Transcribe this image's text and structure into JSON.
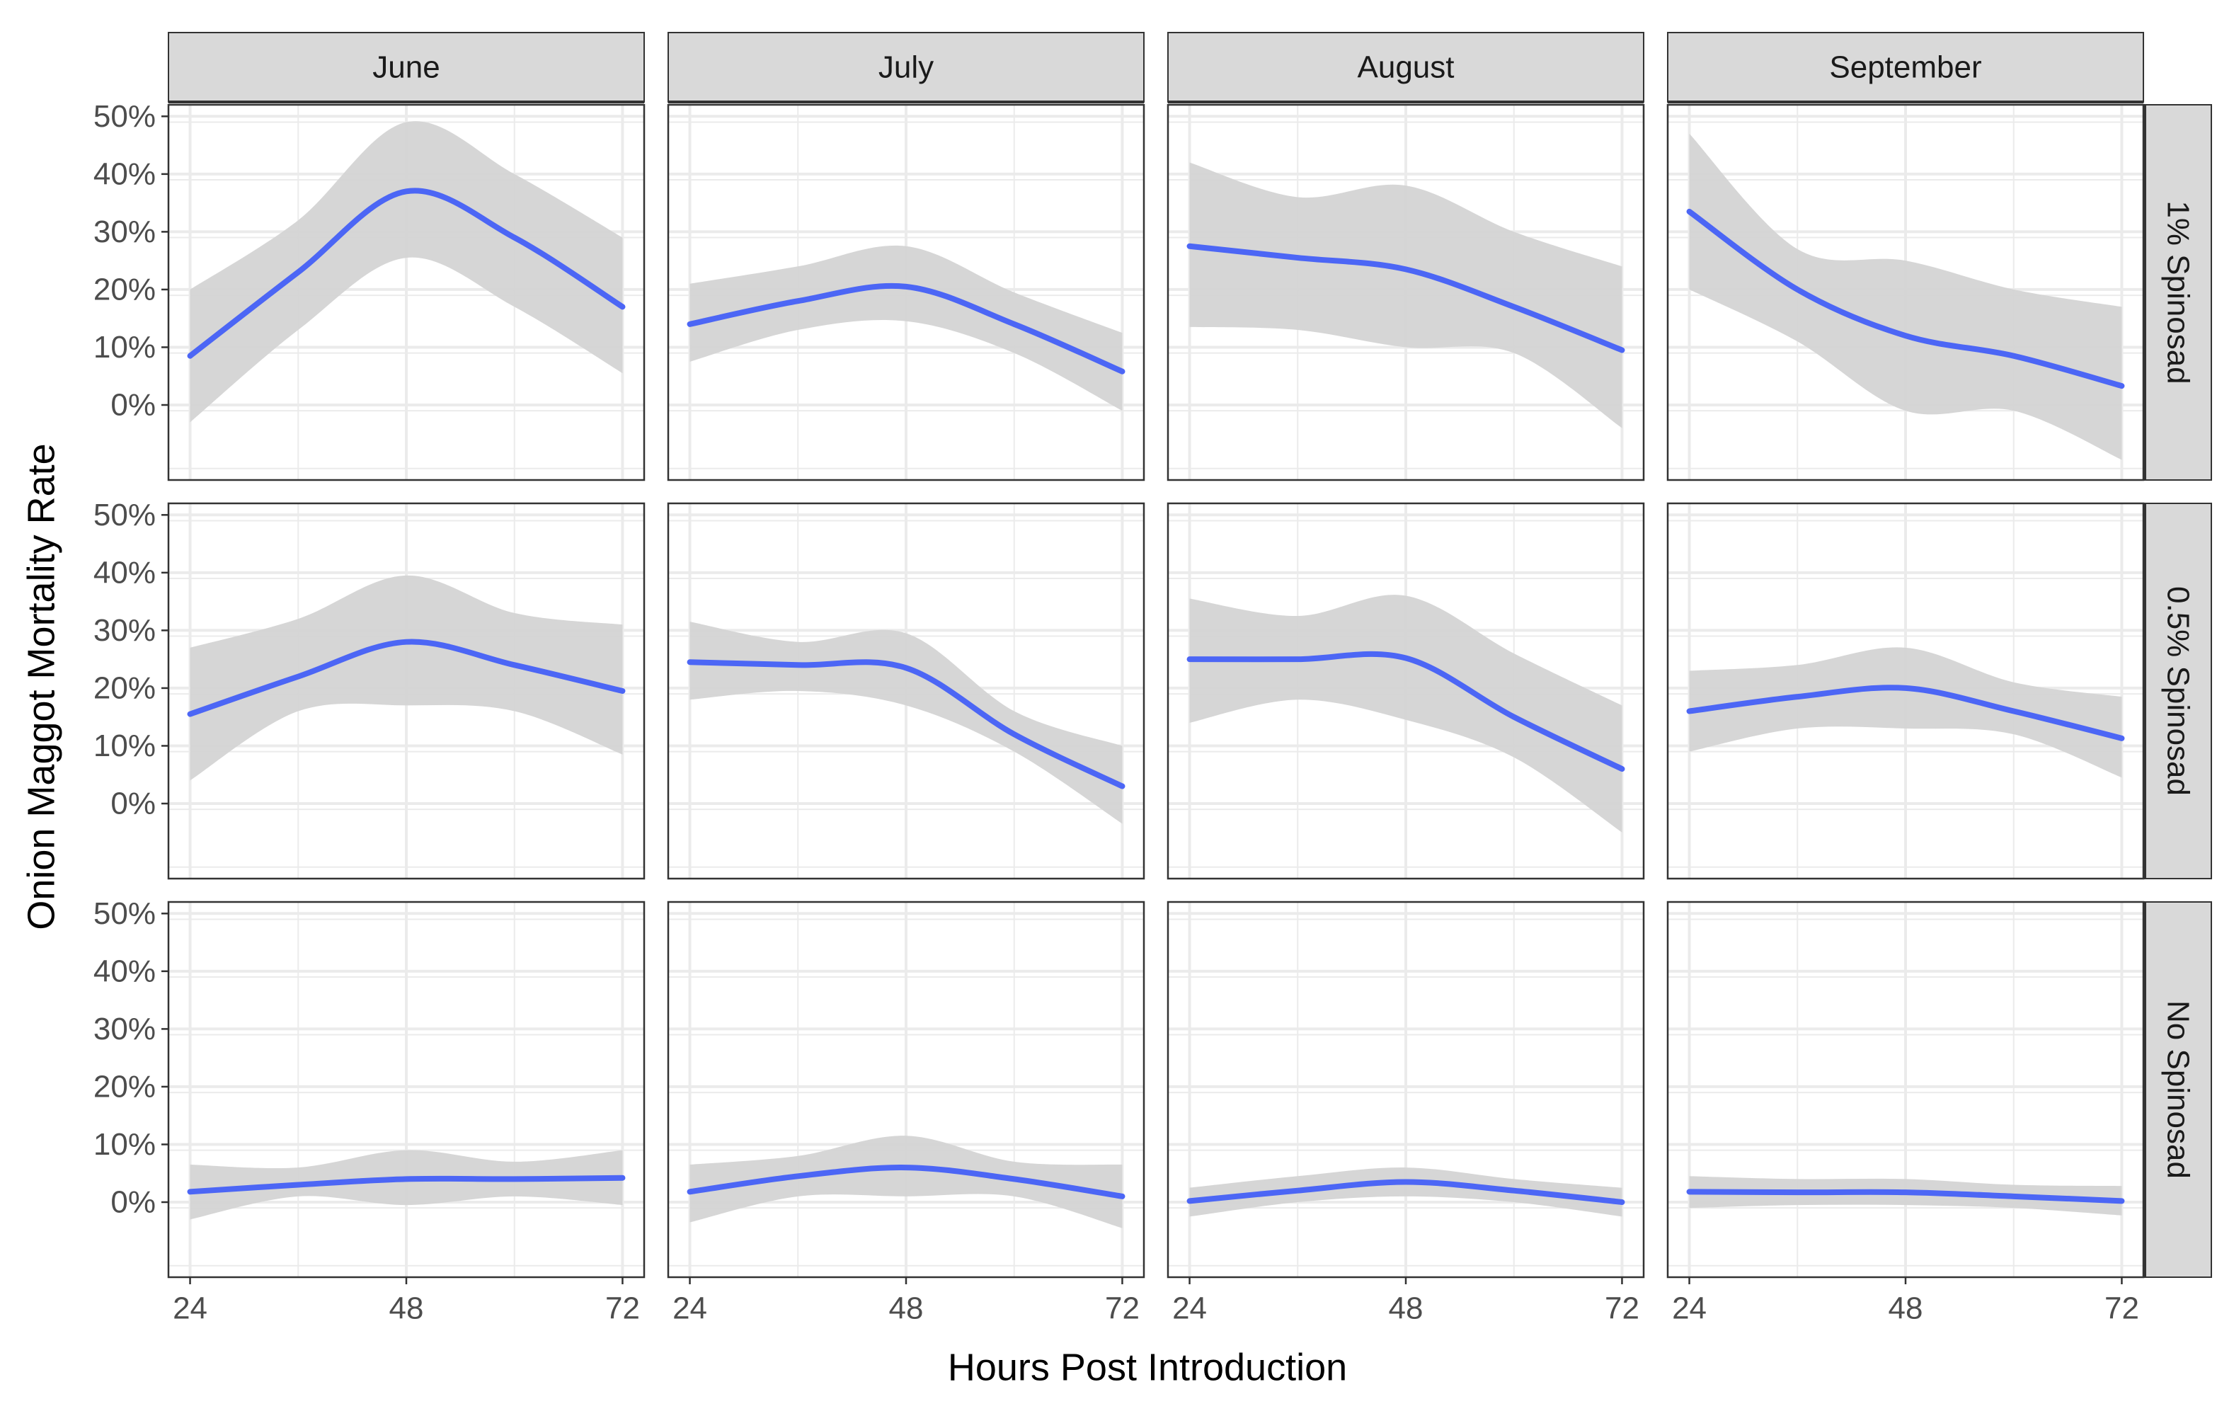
{
  "chart_data": {
    "type": "line",
    "facets": {
      "columns": [
        "June",
        "July",
        "August",
        "September"
      ],
      "rows": [
        "1% Spinosad",
        "0.5% Spinosad",
        "No Spinosad"
      ]
    },
    "xlabel": "Hours Post Introduction",
    "ylabel": "Onion Maggot Mortality Rate",
    "x_ticks": [
      24,
      48,
      72
    ],
    "x_tick_labels": [
      "24",
      "48",
      "72"
    ],
    "y_ticks": [
      0,
      10,
      20,
      30,
      40,
      50
    ],
    "y_tick_labels": [
      "0%",
      "10%",
      "20%",
      "30%",
      "40%",
      "50%"
    ],
    "xlim": [
      21.6,
      74.4
    ],
    "ylim": [
      -13,
      52
    ],
    "grid": true,
    "colors": {
      "line": "#4c66f5",
      "band": "#d4d4d4",
      "strip": "#d9d9d9",
      "grid": "#ebebeb"
    },
    "x": [
      24,
      36,
      48,
      60,
      72
    ],
    "panels": [
      {
        "row": "1% Spinosad",
        "col": "June",
        "y": [
          8.5,
          23,
          37,
          29,
          17
        ],
        "lower": [
          -3,
          13,
          25.5,
          17,
          5.5
        ],
        "upper": [
          20,
          32,
          49,
          40,
          29
        ]
      },
      {
        "row": "1% Spinosad",
        "col": "July",
        "y": [
          14,
          18,
          20.5,
          14,
          5.8
        ],
        "lower": [
          7.5,
          13,
          14.5,
          9,
          -1
        ],
        "upper": [
          21,
          24,
          27.5,
          19.5,
          12.5
        ]
      },
      {
        "row": "1% Spinosad",
        "col": "August",
        "y": [
          27.5,
          25.5,
          23.5,
          17,
          9.5
        ],
        "lower": [
          13.5,
          13,
          10,
          9,
          -4
        ],
        "upper": [
          42,
          36,
          38,
          30,
          24
        ]
      },
      {
        "row": "1% Spinosad",
        "col": "September",
        "y": [
          33.5,
          20,
          12,
          8.5,
          3.3
        ],
        "lower": [
          20,
          11,
          -1,
          -1,
          -9.5
        ],
        "upper": [
          47,
          27,
          25,
          20,
          17
        ]
      },
      {
        "row": "0.5% Spinosad",
        "col": "June",
        "y": [
          15.5,
          22,
          28,
          24,
          19.5
        ],
        "lower": [
          4,
          16,
          17,
          16,
          8.5
        ],
        "upper": [
          27,
          32,
          39.5,
          33,
          31
        ]
      },
      {
        "row": "0.5% Spinosad",
        "col": "July",
        "y": [
          24.5,
          24,
          23.5,
          12,
          3
        ],
        "lower": [
          18,
          19.5,
          17,
          9,
          -3.5
        ],
        "upper": [
          31.5,
          28,
          29.5,
          16,
          10
        ]
      },
      {
        "row": "0.5% Spinosad",
        "col": "August",
        "y": [
          25,
          25,
          25.2,
          15,
          6
        ],
        "lower": [
          14,
          18,
          14.5,
          8,
          -5
        ],
        "upper": [
          35.5,
          32.5,
          36,
          26,
          17
        ]
      },
      {
        "row": "0.5% Spinosad",
        "col": "September",
        "y": [
          16,
          18.5,
          20,
          16,
          11.3
        ],
        "lower": [
          9,
          13,
          13,
          12,
          4.5
        ],
        "upper": [
          23,
          24,
          27,
          21,
          18.5
        ]
      },
      {
        "row": "No Spinosad",
        "col": "June",
        "y": [
          1.8,
          3,
          4,
          4,
          4.2
        ],
        "lower": [
          -3,
          1,
          -0.5,
          1,
          -0.5
        ],
        "upper": [
          6.5,
          6,
          9,
          7,
          9
        ]
      },
      {
        "row": "No Spinosad",
        "col": "July",
        "y": [
          1.8,
          4.5,
          6,
          4,
          1
        ],
        "lower": [
          -3.5,
          1,
          1,
          1,
          -4.5
        ],
        "upper": [
          6.5,
          8,
          11.5,
          7,
          6.5
        ]
      },
      {
        "row": "No Spinosad",
        "col": "August",
        "y": [
          0.2,
          2,
          3.5,
          2,
          0
        ],
        "lower": [
          -2.5,
          0,
          1,
          0,
          -2.5
        ],
        "upper": [
          2.5,
          4.5,
          6,
          4,
          2.5
        ]
      },
      {
        "row": "No Spinosad",
        "col": "September",
        "y": [
          1.8,
          1.7,
          1.7,
          1,
          0.2
        ],
        "lower": [
          -1,
          -0.5,
          -0.5,
          -1,
          -2.3
        ],
        "upper": [
          4.5,
          4,
          4,
          3,
          2.8
        ]
      }
    ]
  }
}
